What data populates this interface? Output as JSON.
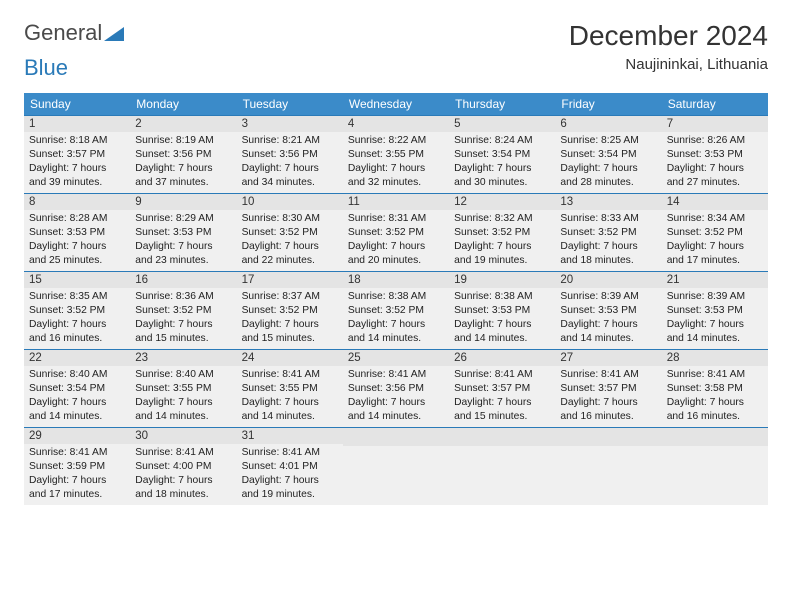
{
  "brand": {
    "part1": "General",
    "part2": "Blue"
  },
  "title": "December 2024",
  "location": "Naujininkai, Lithuania",
  "colors": {
    "header_bg": "#3b8bc9",
    "header_text": "#ffffff",
    "border": "#2a7ab8",
    "cell_bg": "#f0f0f0",
    "numbar_bg": "#e4e4e4",
    "text": "#222222",
    "logo_gray": "#4a4a4a",
    "logo_blue": "#2a7ab8"
  },
  "weekdays": [
    "Sunday",
    "Monday",
    "Tuesday",
    "Wednesday",
    "Thursday",
    "Friday",
    "Saturday"
  ],
  "weeks": [
    [
      {
        "n": "1",
        "sunrise": "8:18 AM",
        "sunset": "3:57 PM",
        "daylight": "7 hours and 39 minutes."
      },
      {
        "n": "2",
        "sunrise": "8:19 AM",
        "sunset": "3:56 PM",
        "daylight": "7 hours and 37 minutes."
      },
      {
        "n": "3",
        "sunrise": "8:21 AM",
        "sunset": "3:56 PM",
        "daylight": "7 hours and 34 minutes."
      },
      {
        "n": "4",
        "sunrise": "8:22 AM",
        "sunset": "3:55 PM",
        "daylight": "7 hours and 32 minutes."
      },
      {
        "n": "5",
        "sunrise": "8:24 AM",
        "sunset": "3:54 PM",
        "daylight": "7 hours and 30 minutes."
      },
      {
        "n": "6",
        "sunrise": "8:25 AM",
        "sunset": "3:54 PM",
        "daylight": "7 hours and 28 minutes."
      },
      {
        "n": "7",
        "sunrise": "8:26 AM",
        "sunset": "3:53 PM",
        "daylight": "7 hours and 27 minutes."
      }
    ],
    [
      {
        "n": "8",
        "sunrise": "8:28 AM",
        "sunset": "3:53 PM",
        "daylight": "7 hours and 25 minutes."
      },
      {
        "n": "9",
        "sunrise": "8:29 AM",
        "sunset": "3:53 PM",
        "daylight": "7 hours and 23 minutes."
      },
      {
        "n": "10",
        "sunrise": "8:30 AM",
        "sunset": "3:52 PM",
        "daylight": "7 hours and 22 minutes."
      },
      {
        "n": "11",
        "sunrise": "8:31 AM",
        "sunset": "3:52 PM",
        "daylight": "7 hours and 20 minutes."
      },
      {
        "n": "12",
        "sunrise": "8:32 AM",
        "sunset": "3:52 PM",
        "daylight": "7 hours and 19 minutes."
      },
      {
        "n": "13",
        "sunrise": "8:33 AM",
        "sunset": "3:52 PM",
        "daylight": "7 hours and 18 minutes."
      },
      {
        "n": "14",
        "sunrise": "8:34 AM",
        "sunset": "3:52 PM",
        "daylight": "7 hours and 17 minutes."
      }
    ],
    [
      {
        "n": "15",
        "sunrise": "8:35 AM",
        "sunset": "3:52 PM",
        "daylight": "7 hours and 16 minutes."
      },
      {
        "n": "16",
        "sunrise": "8:36 AM",
        "sunset": "3:52 PM",
        "daylight": "7 hours and 15 minutes."
      },
      {
        "n": "17",
        "sunrise": "8:37 AM",
        "sunset": "3:52 PM",
        "daylight": "7 hours and 15 minutes."
      },
      {
        "n": "18",
        "sunrise": "8:38 AM",
        "sunset": "3:52 PM",
        "daylight": "7 hours and 14 minutes."
      },
      {
        "n": "19",
        "sunrise": "8:38 AM",
        "sunset": "3:53 PM",
        "daylight": "7 hours and 14 minutes."
      },
      {
        "n": "20",
        "sunrise": "8:39 AM",
        "sunset": "3:53 PM",
        "daylight": "7 hours and 14 minutes."
      },
      {
        "n": "21",
        "sunrise": "8:39 AM",
        "sunset": "3:53 PM",
        "daylight": "7 hours and 14 minutes."
      }
    ],
    [
      {
        "n": "22",
        "sunrise": "8:40 AM",
        "sunset": "3:54 PM",
        "daylight": "7 hours and 14 minutes."
      },
      {
        "n": "23",
        "sunrise": "8:40 AM",
        "sunset": "3:55 PM",
        "daylight": "7 hours and 14 minutes."
      },
      {
        "n": "24",
        "sunrise": "8:41 AM",
        "sunset": "3:55 PM",
        "daylight": "7 hours and 14 minutes."
      },
      {
        "n": "25",
        "sunrise": "8:41 AM",
        "sunset": "3:56 PM",
        "daylight": "7 hours and 14 minutes."
      },
      {
        "n": "26",
        "sunrise": "8:41 AM",
        "sunset": "3:57 PM",
        "daylight": "7 hours and 15 minutes."
      },
      {
        "n": "27",
        "sunrise": "8:41 AM",
        "sunset": "3:57 PM",
        "daylight": "7 hours and 16 minutes."
      },
      {
        "n": "28",
        "sunrise": "8:41 AM",
        "sunset": "3:58 PM",
        "daylight": "7 hours and 16 minutes."
      }
    ],
    [
      {
        "n": "29",
        "sunrise": "8:41 AM",
        "sunset": "3:59 PM",
        "daylight": "7 hours and 17 minutes."
      },
      {
        "n": "30",
        "sunrise": "8:41 AM",
        "sunset": "4:00 PM",
        "daylight": "7 hours and 18 minutes."
      },
      {
        "n": "31",
        "sunrise": "8:41 AM",
        "sunset": "4:01 PM",
        "daylight": "7 hours and 19 minutes."
      },
      null,
      null,
      null,
      null
    ]
  ],
  "labels": {
    "sunrise": "Sunrise:",
    "sunset": "Sunset:",
    "daylight": "Daylight:"
  }
}
